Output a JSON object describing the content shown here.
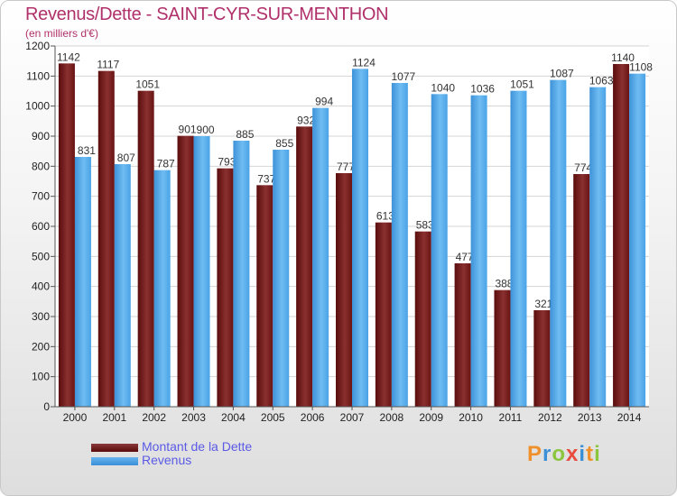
{
  "header": {
    "title": "Revenus/Dette - SAINT-CYR-SUR-MENTHON",
    "subtitle": "(en milliers d'€)"
  },
  "legend": {
    "items": [
      {
        "label": "Montant de la Dette",
        "color": "#6b1a1a"
      },
      {
        "label": "Revenus",
        "color": "#4aa3e6"
      }
    ]
  },
  "brand": {
    "text": "Proxiti",
    "letters": [
      "P",
      "r",
      "o",
      "x",
      "i",
      "t",
      "i"
    ],
    "colors": [
      "#f0902a",
      "#3a8fd6",
      "#8cc63f",
      "#e84c3d",
      "#3a8fd6",
      "#f0902a",
      "#8cc63f"
    ]
  },
  "chart_data": {
    "type": "bar",
    "categories": [
      "2000",
      "2001",
      "2002",
      "2003",
      "2004",
      "2005",
      "2006",
      "2007",
      "2008",
      "2009",
      "2010",
      "2011",
      "2012",
      "2013",
      "2014"
    ],
    "series": [
      {
        "name": "Montant de la Dette",
        "color": "#6b1a1a",
        "values": [
          1142,
          1117,
          1051,
          901,
          793,
          737,
          932,
          777,
          613,
          583,
          477,
          388,
          321,
          774,
          1140
        ]
      },
      {
        "name": "Revenus",
        "color": "#4aa3e6",
        "values": [
          831,
          807,
          787,
          900,
          885,
          855,
          994,
          1124,
          1077,
          1040,
          1036,
          1051,
          1087,
          1063,
          1108
        ]
      }
    ],
    "ylim": [
      0,
      1200
    ],
    "yticks": [
      0,
      100,
      200,
      300,
      400,
      500,
      600,
      700,
      800,
      900,
      1000,
      1100,
      1200
    ],
    "grid": true,
    "legend_position": "bottom-left"
  }
}
